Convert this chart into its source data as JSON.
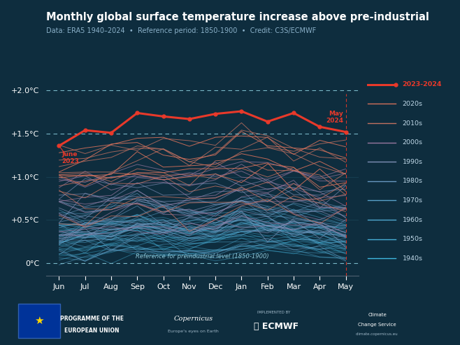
{
  "title": "Monthly global surface temperature increase above pre-industrial",
  "subtitle": "Data: ERA5 1940–2024  •  Reference period: 1850-1900  •  Credit: C3S/ECMWF",
  "bg_color": "#0e2d3e",
  "text_color": "#ffffff",
  "months": [
    "Jun",
    "Jul",
    "Aug",
    "Sep",
    "Oct",
    "Nov",
    "Dec",
    "Jan",
    "Feb",
    "Mar",
    "Apr",
    "May"
  ],
  "yticks": [
    0.0,
    0.5,
    1.0,
    1.5,
    2.0
  ],
  "ylabels": [
    "0°C",
    "+0.5°C",
    "+1.0°C",
    "+1.5°C",
    "+2.0°C"
  ],
  "ylim": [
    -0.15,
    2.25
  ],
  "highlight_values": [
    1.36,
    1.54,
    1.51,
    1.74,
    1.7,
    1.67,
    1.73,
    1.76,
    1.64,
    1.74,
    1.58,
    1.52
  ],
  "highlight_color": "#e8392a",
  "decade_colors": {
    "2020s": "#d4705a",
    "2010s": "#c07060",
    "2000s": "#9878a0",
    "1990s": "#8090b8",
    "1980s": "#6898c0",
    "1970s": "#58a0c8",
    "1960s": "#50a8d0",
    "1950s": "#48b0d8",
    "1940s": "#40b8e0"
  },
  "decade_alphas": {
    "2020s": 0.9,
    "2010s": 0.8,
    "2000s": 0.7,
    "1990s": 0.65,
    "1980s": 0.6,
    "1970s": 0.55,
    "1960s": 0.5,
    "1950s": 0.45,
    "1940s": 0.4
  },
  "legend_order": [
    "2023-2024",
    "2020s",
    "2010s",
    "2000s",
    "1990s",
    "1980s",
    "1970s",
    "1960s",
    "1950s",
    "1940s"
  ]
}
